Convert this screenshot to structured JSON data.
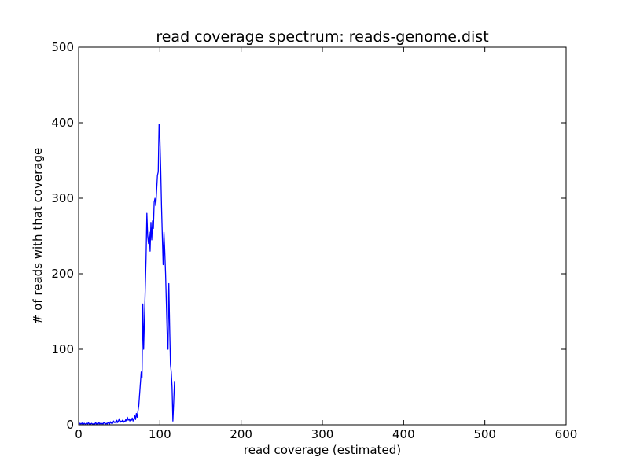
{
  "chart_data": {
    "type": "line",
    "title": "read coverage spectrum: reads-genome.dist",
    "xlabel": "read coverage (estimated)",
    "ylabel": "# of reads with that coverage",
    "xlim": [
      0,
      600
    ],
    "ylim": [
      0,
      500
    ],
    "x_ticks": [
      "0",
      "100",
      "200",
      "300",
      "400",
      "500",
      "600"
    ],
    "y_ticks": [
      "0",
      "100",
      "200",
      "300",
      "400",
      "500"
    ],
    "grid": false,
    "line_color": "#0000ff",
    "series": [
      {
        "x": [
          0,
          1,
          2,
          3,
          4,
          5,
          6,
          7,
          8,
          9,
          10,
          11,
          12,
          13,
          14,
          15,
          16,
          17,
          18,
          19,
          20,
          21,
          22,
          23,
          24,
          25,
          26,
          27,
          28,
          29,
          30,
          31,
          32,
          33,
          34,
          35,
          36,
          37,
          38,
          39,
          40,
          41,
          42,
          43,
          44,
          45,
          46,
          47,
          48,
          49,
          50,
          51,
          52,
          53,
          54,
          55,
          56,
          57,
          58,
          59,
          60,
          61,
          62,
          63,
          64,
          65,
          66,
          67,
          68,
          69,
          70,
          71,
          72,
          73,
          74,
          75,
          76,
          77,
          78,
          79,
          80,
          81,
          82,
          83,
          84,
          85,
          86,
          87,
          88,
          89,
          90,
          91,
          92,
          93,
          94,
          95,
          96,
          97,
          98,
          99,
          100,
          101,
          102,
          103,
          104,
          105,
          106,
          107,
          108,
          109,
          110,
          111,
          112,
          113,
          114,
          115,
          116,
          117,
          118
        ],
        "y": [
          5,
          2,
          1,
          2,
          1,
          3,
          1,
          2,
          1,
          1,
          2,
          1,
          3,
          1,
          2,
          1,
          2,
          1,
          1,
          2,
          1,
          3,
          1,
          2,
          1,
          3,
          1,
          2,
          1,
          2,
          1,
          3,
          2,
          1,
          2,
          1,
          3,
          2,
          1,
          4,
          2,
          3,
          2,
          5,
          3,
          4,
          2,
          6,
          3,
          5,
          8,
          3,
          5,
          4,
          6,
          3,
          5,
          4,
          7,
          5,
          10,
          6,
          8,
          5,
          7,
          6,
          9,
          5,
          8,
          12,
          7,
          15,
          10,
          18,
          25,
          40,
          55,
          70,
          62,
          160,
          100,
          140,
          180,
          220,
          280,
          250,
          240,
          255,
          230,
          268,
          245,
          270,
          260,
          295,
          300,
          290,
          310,
          330,
          335,
          398,
          380,
          340,
          290,
          250,
          212,
          255,
          230,
          200,
          160,
          120,
          100,
          187,
          130,
          80,
          70,
          50,
          5,
          30,
          58
        ]
      }
    ]
  }
}
